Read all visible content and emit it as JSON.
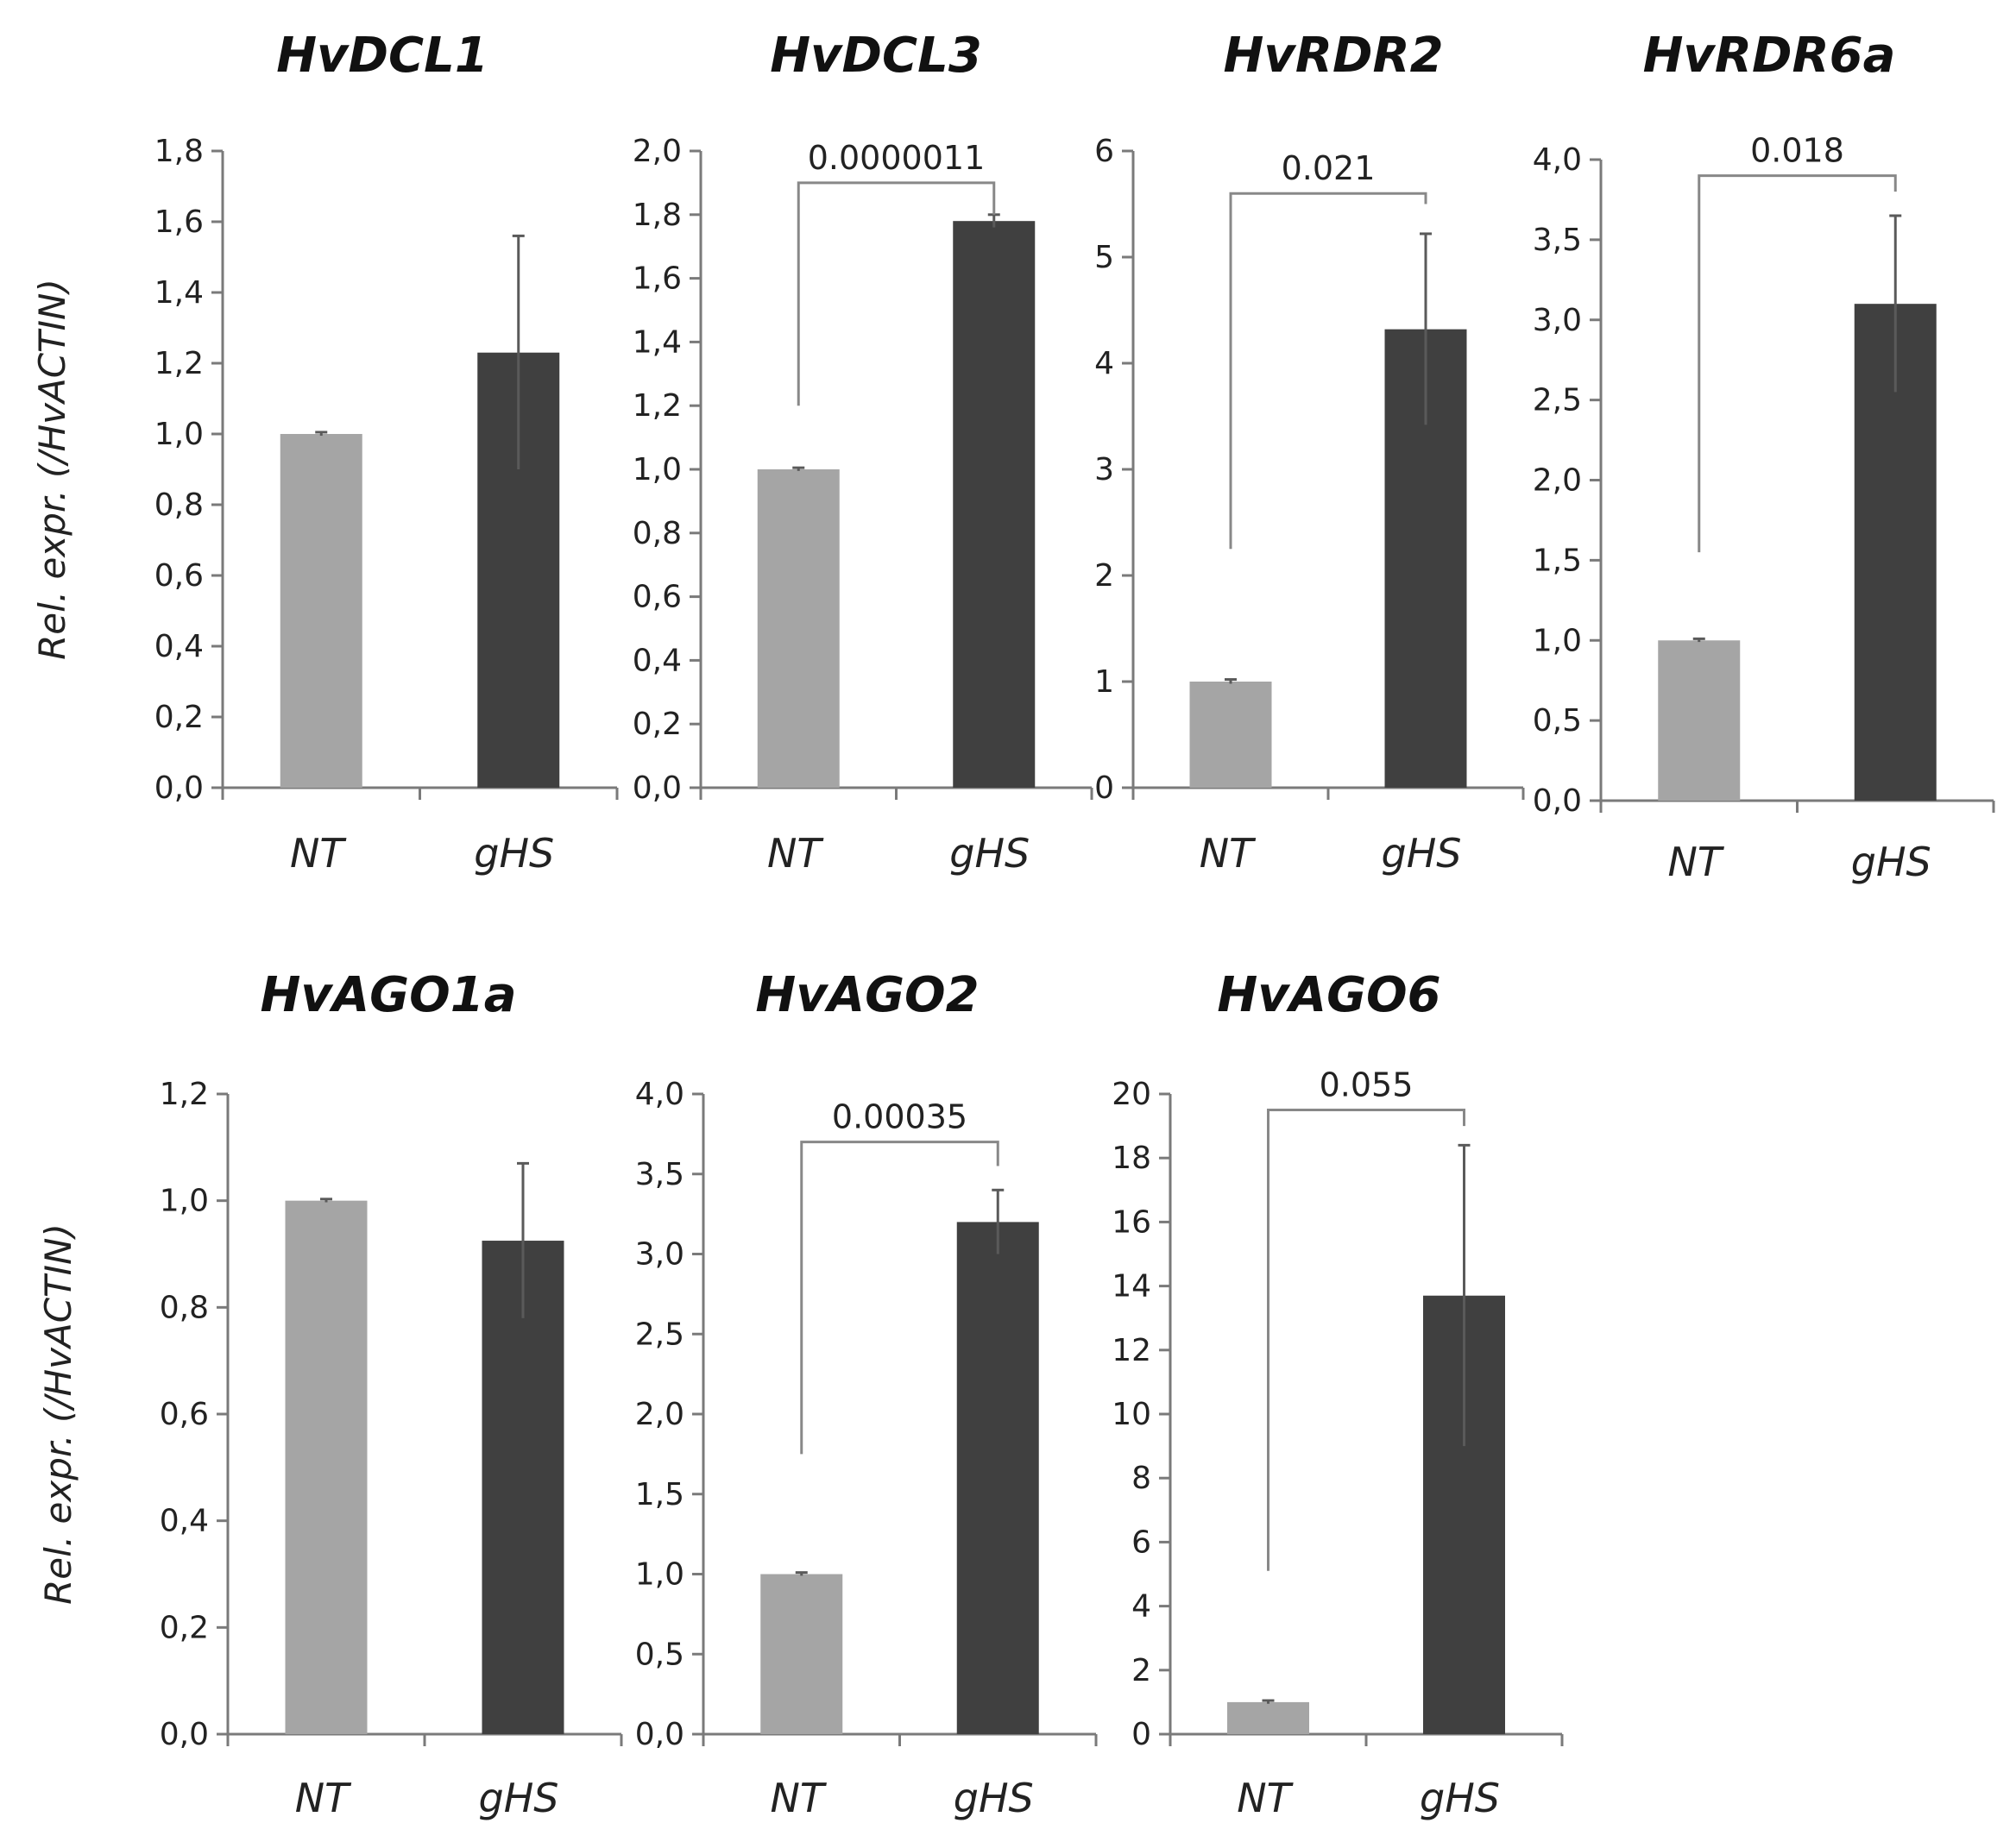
{
  "figure": {
    "ylabel": "Rel. expr. (/HvACTIN)",
    "colors": {
      "NT": "#a5a5a5",
      "gHS": "#404040"
    }
  },
  "chart_data": [
    {
      "type": "bar",
      "title": "HvDCL1",
      "ylabel": "Rel. expr. (/HvACTIN)",
      "show_ylabel": true,
      "categories": [
        "NT",
        "gHS"
      ],
      "values": [
        1.0,
        1.23
      ],
      "errors": [
        0.005,
        0.33
      ],
      "ylim": [
        0,
        1.8
      ],
      "ticks": [
        "0,0",
        "0,2",
        "0,4",
        "0,6",
        "0,8",
        "1,0",
        "1,2",
        "1,4",
        "1,6",
        "1,8"
      ],
      "pvalue": null
    },
    {
      "type": "bar",
      "title": "HvDCL3",
      "ylabel": "Rel. expr. (/HvACTIN)",
      "show_ylabel": false,
      "categories": [
        "NT",
        "gHS"
      ],
      "values": [
        1.0,
        1.78
      ],
      "errors": [
        0.005,
        0.02
      ],
      "ylim": [
        0,
        2.0
      ],
      "ticks": [
        "0,0",
        "0,2",
        "0,4",
        "0,6",
        "0,8",
        "1,0",
        "1,2",
        "1,4",
        "1,6",
        "1,8",
        "2,0"
      ],
      "pvalue": "0.0000011",
      "bracket_levels": [
        1.9,
        1.2,
        1.8
      ]
    },
    {
      "type": "bar",
      "title": "HvRDR2",
      "ylabel": "Rel. expr. (/HvACTIN)",
      "show_ylabel": false,
      "categories": [
        "NT",
        "gHS"
      ],
      "values": [
        1.0,
        4.32
      ],
      "errors": [
        0.02,
        0.9
      ],
      "ylim": [
        0,
        6
      ],
      "ticks": [
        "0",
        "1",
        "2",
        "3",
        "4",
        "5",
        "6"
      ],
      "pvalue": "0.021",
      "bracket_levels": [
        5.6,
        2.25,
        5.5
      ]
    },
    {
      "type": "bar",
      "title": "HvRDR6a",
      "ylabel": "Rel. expr. (/HvACTIN)",
      "show_ylabel": false,
      "categories": [
        "NT",
        "gHS"
      ],
      "values": [
        1.0,
        3.1
      ],
      "errors": [
        0.01,
        0.55
      ],
      "ylim": [
        0,
        4.0
      ],
      "ticks": [
        "0,0",
        "0,5",
        "1,0",
        "1,5",
        "2,0",
        "2,5",
        "3,0",
        "3,5",
        "4,0"
      ],
      "pvalue": "0.018",
      "bracket_levels": [
        3.9,
        1.55,
        3.8
      ]
    },
    {
      "type": "bar",
      "title": "HvAGO1a",
      "ylabel": "Rel. expr. (/HvACTIN)",
      "show_ylabel": true,
      "categories": [
        "NT",
        "gHS"
      ],
      "values": [
        1.0,
        0.925
      ],
      "errors": [
        0.003,
        0.145
      ],
      "ylim": [
        0,
        1.2
      ],
      "ticks": [
        "0,0",
        "0,2",
        "0,4",
        "0,6",
        "0,8",
        "1,0",
        "1,2"
      ],
      "pvalue": null
    },
    {
      "type": "bar",
      "title": "HvAGO2",
      "ylabel": "Rel. expr. (/HvACTIN)",
      "show_ylabel": false,
      "categories": [
        "NT",
        "gHS"
      ],
      "values": [
        1.0,
        3.2
      ],
      "errors": [
        0.01,
        0.2
      ],
      "ylim": [
        0,
        4.0
      ],
      "ticks": [
        "0,0",
        "0,5",
        "1,0",
        "1,5",
        "2,0",
        "2,5",
        "3,0",
        "3,5",
        "4,0"
      ],
      "pvalue": "0.00035",
      "bracket_levels": [
        3.7,
        1.75,
        3.55
      ]
    },
    {
      "type": "bar",
      "title": "HvAGO6",
      "ylabel": "Rel. expr. (/HvACTIN)",
      "show_ylabel": false,
      "categories": [
        "NT",
        "gHS"
      ],
      "values": [
        1.0,
        13.7
      ],
      "errors": [
        0.05,
        4.7
      ],
      "ylim": [
        0,
        20
      ],
      "ticks": [
        "0",
        "2",
        "4",
        "6",
        "8",
        "10",
        "12",
        "14",
        "16",
        "18",
        "20"
      ],
      "pvalue": "0.055",
      "bracket_levels": [
        19.5,
        5.1,
        19.0
      ]
    }
  ]
}
